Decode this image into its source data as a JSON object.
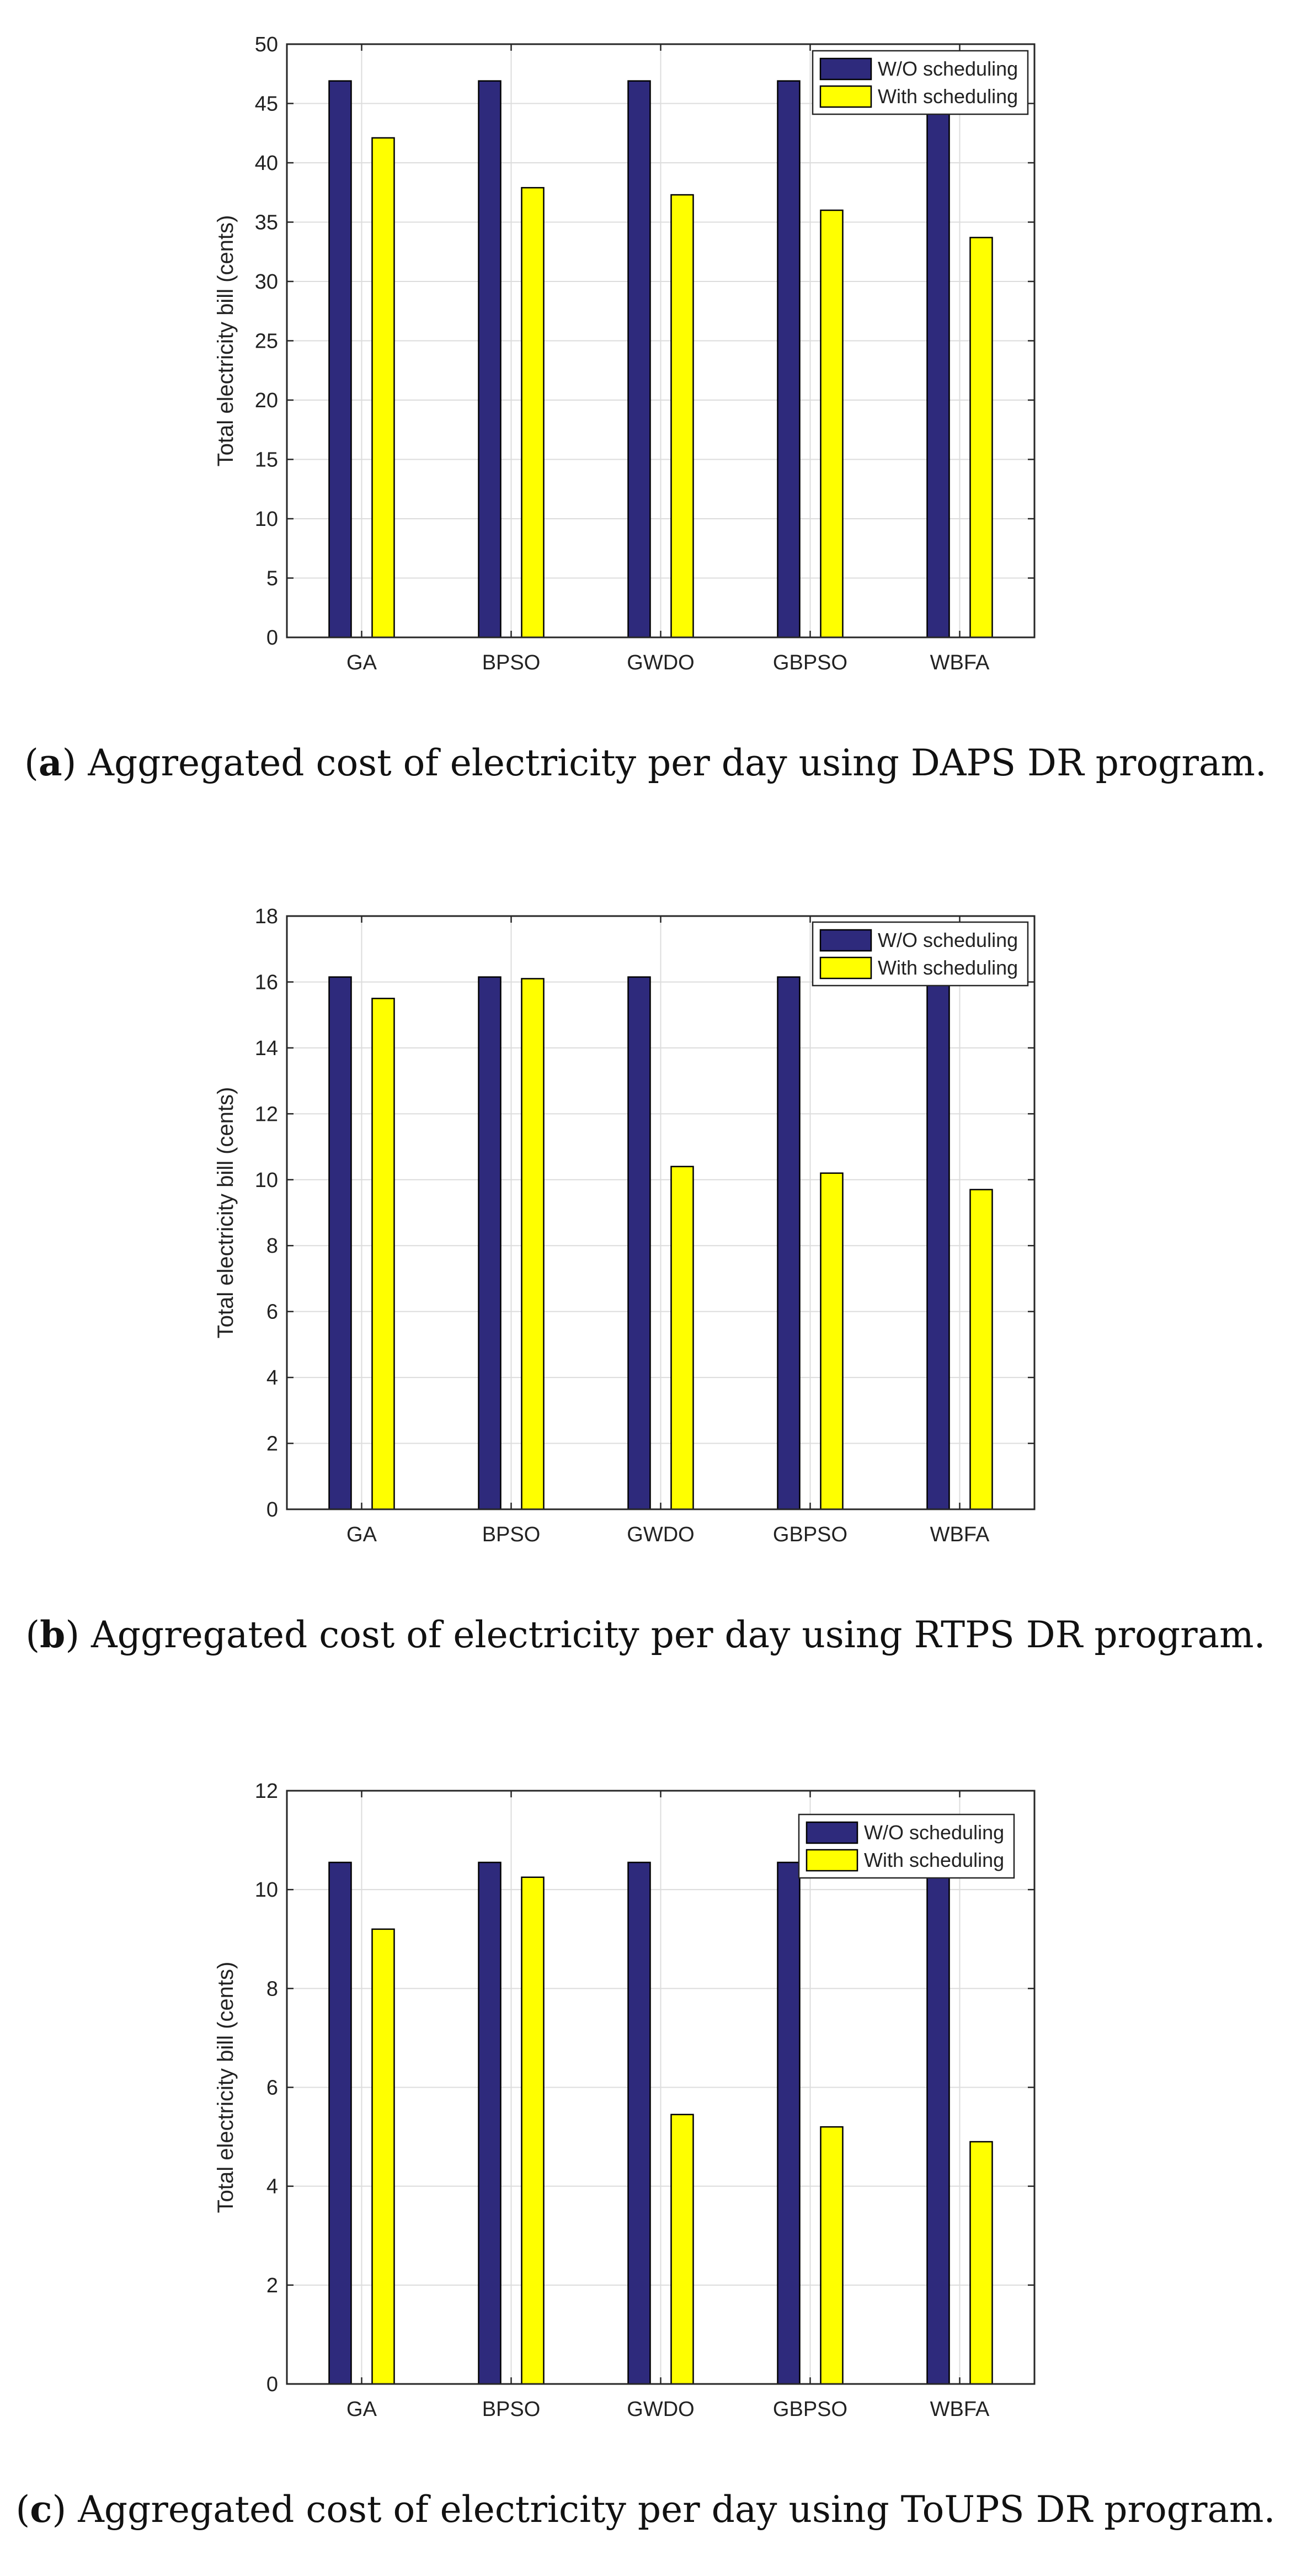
{
  "colors": {
    "wo_scheduling": "#2e2a7c",
    "with_scheduling": "#ffff00",
    "grid": "#dcdcdc",
    "axis": "#262626"
  },
  "chart_data": [
    {
      "type": "bar",
      "categories": [
        "GA",
        "BPSO",
        "GWDO",
        "GBPSO",
        "WBFA"
      ],
      "series": [
        {
          "name": "W/O scheduling",
          "values": [
            46.9,
            46.9,
            46.9,
            46.9,
            46.9
          ]
        },
        {
          "name": "With scheduling",
          "values": [
            42.1,
            37.9,
            37.3,
            36.0,
            33.7
          ]
        }
      ],
      "xlabel": "",
      "ylabel": "Total electricity bill (cents)",
      "ylim": [
        0,
        50
      ],
      "yticks": [
        0,
        5,
        10,
        15,
        20,
        25,
        30,
        35,
        40,
        45,
        50
      ],
      "grid": true,
      "legend_position": "top-right",
      "caption_letter": "a",
      "caption_text": "Aggregated cost of electricity per day using DAPS DR program."
    },
    {
      "type": "bar",
      "categories": [
        "GA",
        "BPSO",
        "GWDO",
        "GBPSO",
        "WBFA"
      ],
      "series": [
        {
          "name": "W/O scheduling",
          "values": [
            16.15,
            16.15,
            16.15,
            16.15,
            16.15
          ]
        },
        {
          "name": "With scheduling",
          "values": [
            15.5,
            16.1,
            10.4,
            10.2,
            9.7
          ]
        }
      ],
      "xlabel": "",
      "ylabel": "Total electricity bill (cents)",
      "ylim": [
        0,
        18
      ],
      "yticks": [
        0,
        2,
        4,
        6,
        8,
        10,
        12,
        14,
        16,
        18
      ],
      "grid": true,
      "legend_position": "top-right",
      "caption_letter": "b",
      "caption_text": "Aggregated cost of electricity per day using RTPS DR program."
    },
    {
      "type": "bar",
      "categories": [
        "GA",
        "BPSO",
        "GWDO",
        "GBPSO",
        "WBFA"
      ],
      "series": [
        {
          "name": "W/O scheduling",
          "values": [
            10.55,
            10.55,
            10.55,
            10.55,
            10.55
          ]
        },
        {
          "name": "With scheduling",
          "values": [
            9.2,
            10.25,
            5.45,
            5.2,
            4.9
          ]
        }
      ],
      "xlabel": "",
      "ylabel": "Total electricity bill (cents)",
      "ylim": [
        0,
        12
      ],
      "yticks": [
        0,
        2,
        4,
        6,
        8,
        10,
        12
      ],
      "grid": true,
      "legend_position": "top-right",
      "caption_letter": "c",
      "caption_text": "Aggregated cost of electricity per day using ToUPS DR program."
    }
  ]
}
